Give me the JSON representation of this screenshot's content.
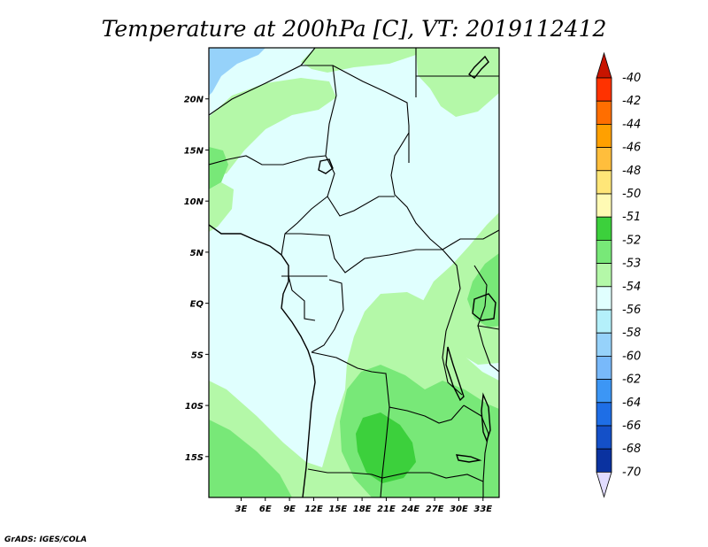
{
  "title": "Temperature at 200hPa [C], VT: 2019112412",
  "credit": "GrADS: IGES/COLA",
  "map": {
    "region": "Central Africa",
    "lat_range": [
      -19,
      25
    ],
    "lon_range": [
      -1,
      35
    ],
    "lat_ticks": [
      {
        "value": 20,
        "label": "20N"
      },
      {
        "value": 15,
        "label": "15N"
      },
      {
        "value": 10,
        "label": "10N"
      },
      {
        "value": 5,
        "label": "5N"
      },
      {
        "value": 0,
        "label": "EQ"
      },
      {
        "value": -5,
        "label": "5S"
      },
      {
        "value": -10,
        "label": "10S"
      },
      {
        "value": -15,
        "label": "15S"
      }
    ],
    "lon_ticks": [
      {
        "value": 3,
        "label": "3E"
      },
      {
        "value": 6,
        "label": "6E"
      },
      {
        "value": 9,
        "label": "9E"
      },
      {
        "value": 12,
        "label": "12E"
      },
      {
        "value": 15,
        "label": "15E"
      },
      {
        "value": 18,
        "label": "18E"
      },
      {
        "value": 21,
        "label": "21E"
      },
      {
        "value": 24,
        "label": "24E"
      },
      {
        "value": 27,
        "label": "27E"
      },
      {
        "value": 30,
        "label": "30E"
      },
      {
        "value": 33,
        "label": "33E"
      }
    ],
    "field_colors": {
      "base": "#e0fffe",
      "light_green": "#b4f8a8",
      "mid_green": "#78e878",
      "dark_green": "#3cd03c",
      "light_blue": "#96d2fa"
    }
  },
  "colorbar": {
    "levels": [
      {
        "label": "-40",
        "color": "#e61400"
      },
      {
        "label": "-42",
        "color": "#ff3200"
      },
      {
        "label": "-44",
        "color": "#ff6e00"
      },
      {
        "label": "-46",
        "color": "#ffa000"
      },
      {
        "label": "-48",
        "color": "#ffbe3c"
      },
      {
        "label": "-50",
        "color": "#ffe678"
      },
      {
        "label": "-51",
        "color": "#fffab4"
      },
      {
        "label": "-52",
        "color": "#3cd03c"
      },
      {
        "label": "-53",
        "color": "#78e878"
      },
      {
        "label": "-54",
        "color": "#b4f8a8"
      },
      {
        "label": "-56",
        "color": "#e0fffe"
      },
      {
        "label": "-58",
        "color": "#b4f0fa"
      },
      {
        "label": "-60",
        "color": "#96d2fa"
      },
      {
        "label": "-62",
        "color": "#78b9fa"
      },
      {
        "label": "-64",
        "color": "#3c96f5"
      },
      {
        "label": "-66",
        "color": "#1e6ee6"
      },
      {
        "label": "-68",
        "color": "#1450c8"
      },
      {
        "label": "-70",
        "color": "#0a32a0"
      }
    ],
    "top_arrow_color": "#c81400",
    "bottom_arrow_color": "#e1dcff",
    "bottom_block_color": "#000064"
  }
}
